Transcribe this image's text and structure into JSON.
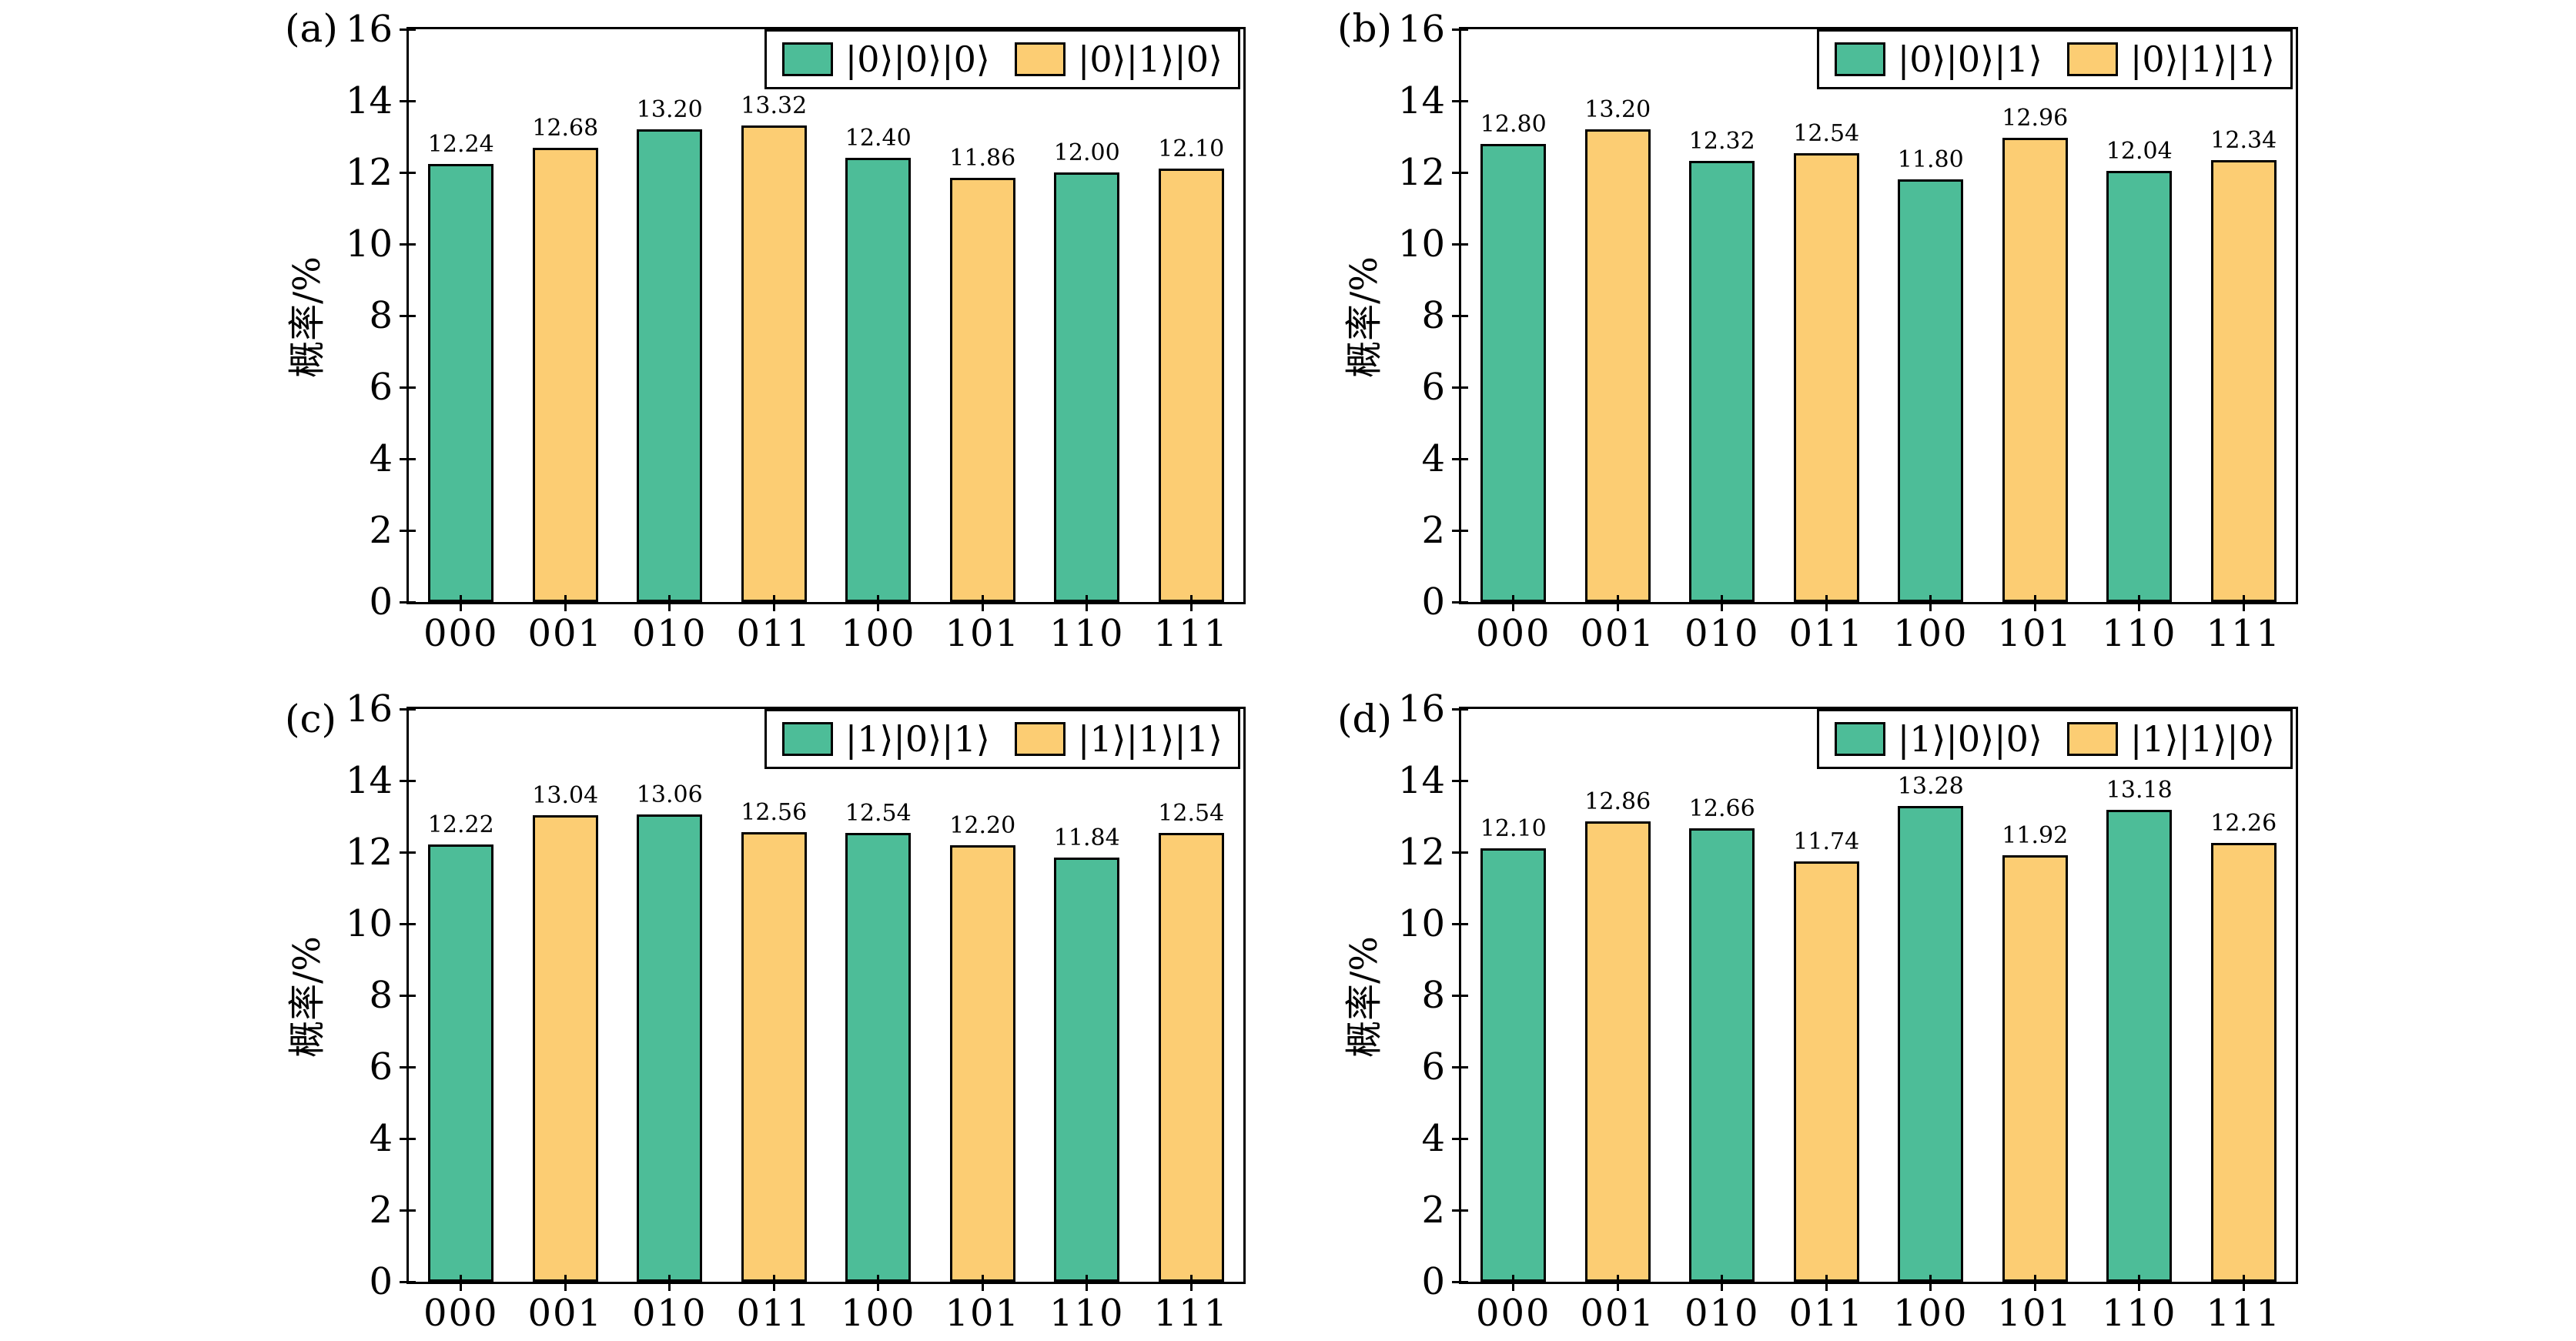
{
  "chart_data": [
    {
      "type": "bar",
      "panel_label": "(a)",
      "ylabel": "概率/%",
      "ylim": [
        0,
        16
      ],
      "yticks": [
        0,
        2,
        4,
        6,
        8,
        10,
        12,
        14,
        16
      ],
      "categories": [
        "000",
        "001",
        "010",
        "011",
        "100",
        "101",
        "110",
        "111"
      ],
      "legend": [
        {
          "label": "|0⟩|0⟩|0⟩",
          "color": "#4DBD98"
        },
        {
          "label": "|0⟩|1⟩|0⟩",
          "color": "#FCCD73"
        }
      ],
      "values": [
        12.24,
        12.68,
        13.2,
        13.32,
        12.4,
        11.86,
        12.0,
        12.1
      ]
    },
    {
      "type": "bar",
      "panel_label": "(b)",
      "ylabel": "概率/%",
      "ylim": [
        0,
        16
      ],
      "yticks": [
        0,
        2,
        4,
        6,
        8,
        10,
        12,
        14,
        16
      ],
      "categories": [
        "000",
        "001",
        "010",
        "011",
        "100",
        "101",
        "110",
        "111"
      ],
      "legend": [
        {
          "label": "|0⟩|0⟩|1⟩",
          "color": "#4DBD98"
        },
        {
          "label": "|0⟩|1⟩|1⟩",
          "color": "#FCCD73"
        }
      ],
      "values": [
        12.8,
        13.2,
        12.32,
        12.54,
        11.8,
        12.96,
        12.04,
        12.34
      ]
    },
    {
      "type": "bar",
      "panel_label": "(c)",
      "ylabel": "概率/%",
      "ylim": [
        0,
        16
      ],
      "yticks": [
        0,
        2,
        4,
        6,
        8,
        10,
        12,
        14,
        16
      ],
      "categories": [
        "000",
        "001",
        "010",
        "011",
        "100",
        "101",
        "110",
        "111"
      ],
      "legend": [
        {
          "label": "|1⟩|0⟩|1⟩",
          "color": "#4DBD98"
        },
        {
          "label": "|1⟩|1⟩|1⟩",
          "color": "#FCCD73"
        }
      ],
      "values": [
        12.22,
        13.04,
        13.06,
        12.56,
        12.54,
        12.2,
        11.84,
        12.54
      ]
    },
    {
      "type": "bar",
      "panel_label": "(d)",
      "ylabel": "概率/%",
      "ylim": [
        0,
        16
      ],
      "yticks": [
        0,
        2,
        4,
        6,
        8,
        10,
        12,
        14,
        16
      ],
      "categories": [
        "000",
        "001",
        "010",
        "011",
        "100",
        "101",
        "110",
        "111"
      ],
      "legend": [
        {
          "label": "|1⟩|0⟩|0⟩",
          "color": "#4DBD98"
        },
        {
          "label": "|1⟩|1⟩|0⟩",
          "color": "#FCCD73"
        }
      ],
      "values": [
        12.1,
        12.86,
        12.66,
        11.74,
        13.28,
        11.92,
        13.18,
        12.26
      ]
    }
  ],
  "style": {
    "bar_colors": [
      "#4DBD98",
      "#FCCD73"
    ],
    "bar_edge_color": "#000000",
    "axis_color": "#000000",
    "background": "#ffffff"
  }
}
